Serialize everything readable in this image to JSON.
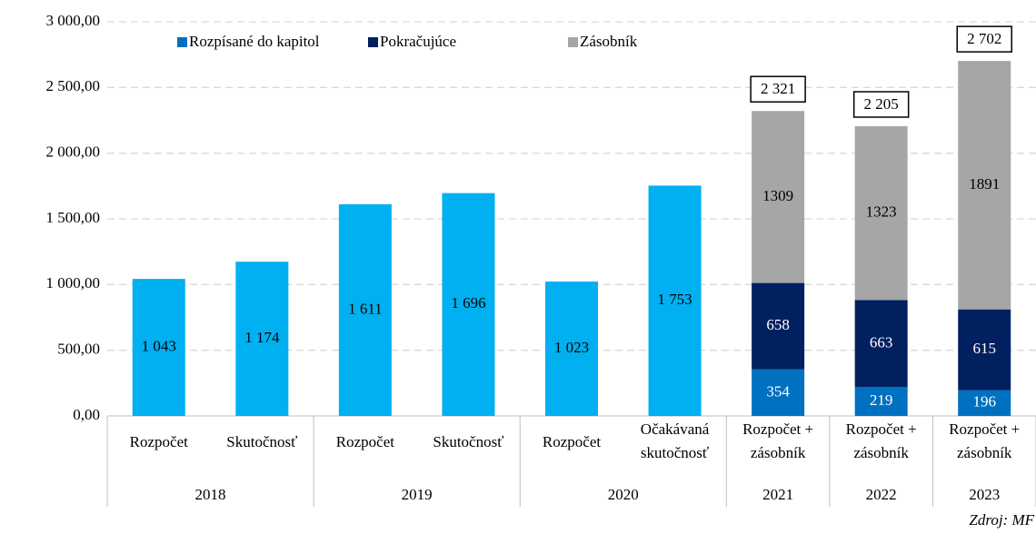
{
  "chart_data": {
    "type": "stacked_bar",
    "categories": [
      [
        "Rozpočet"
      ],
      [
        "Skutočnosť"
      ],
      [
        "Rozpočet"
      ],
      [
        "Skutočnosť"
      ],
      [
        "Rozpočet"
      ],
      [
        "Očakávaná",
        "skutočnosť"
      ],
      [
        "Rozpočet +",
        "zásobník"
      ],
      [
        "Rozpočet +",
        "zásobník"
      ],
      [
        "Rozpočet +",
        "zásobník"
      ]
    ],
    "groups": [
      {
        "name": "2018",
        "size": 2
      },
      {
        "name": "2019",
        "size": 2
      },
      {
        "name": "2020",
        "size": 2
      },
      {
        "name": "2021",
        "size": 1
      },
      {
        "name": "2022",
        "size": 1
      },
      {
        "name": "2023",
        "size": 1
      }
    ],
    "series": [
      {
        "name": "Rozpísané do kapitol",
        "color": "#0070c0",
        "colors": [
          "#00b0f0",
          "#00b0f0",
          "#00b0f0",
          "#00b0f0",
          "#00b0f0",
          "#00b0f0",
          "#0070c0",
          "#0070c0",
          "#0070c0"
        ],
        "values": [
          1043,
          1174,
          1611,
          1696,
          1023,
          1753,
          354,
          219,
          196
        ],
        "value_labels": [
          "1 043",
          "1 174",
          "1 611",
          "1 696",
          "1 023",
          "1 753",
          "354",
          "219",
          "196"
        ],
        "label_colors": [
          "#000",
          "#000",
          "#000",
          "#000",
          "#000",
          "#000",
          "#fff",
          "#fff",
          "#fff"
        ]
      },
      {
        "name": "Pokračujúce",
        "color": "#002060",
        "values": [
          null,
          null,
          null,
          null,
          null,
          null,
          658,
          663,
          615
        ],
        "label_colors": [
          "#fff",
          "#fff",
          "#fff",
          "#fff",
          "#fff",
          "#fff",
          "#fff",
          "#fff",
          "#fff"
        ]
      },
      {
        "name": "Zásobník",
        "color": "#a6a6a6",
        "values": [
          null,
          null,
          null,
          null,
          null,
          null,
          1309,
          1323,
          1891
        ],
        "label_colors": [
          "#000",
          "#000",
          "#000",
          "#000",
          "#000",
          "#000",
          "#000",
          "#000",
          "#000"
        ]
      }
    ],
    "totals": [
      null,
      null,
      null,
      null,
      null,
      null,
      2321,
      2205,
      2702
    ],
    "total_labels": [
      null,
      null,
      null,
      null,
      null,
      null,
      "2 321",
      "2 205",
      "2 702"
    ],
    "ylim": [
      0,
      3000
    ],
    "yticks": [
      {
        "value": 0,
        "label": "0,00"
      },
      {
        "value": 500,
        "label": "500,00"
      },
      {
        "value": 1000,
        "label": "1 000,00"
      },
      {
        "value": 1500,
        "label": "1 500,00"
      },
      {
        "value": 2000,
        "label": "2 000,00"
      },
      {
        "value": 2500,
        "label": "2 500,00"
      },
      {
        "value": 3000,
        "label": "3 000,00"
      }
    ],
    "grid": true,
    "legend": "top",
    "source": "Zdroj: MF"
  }
}
